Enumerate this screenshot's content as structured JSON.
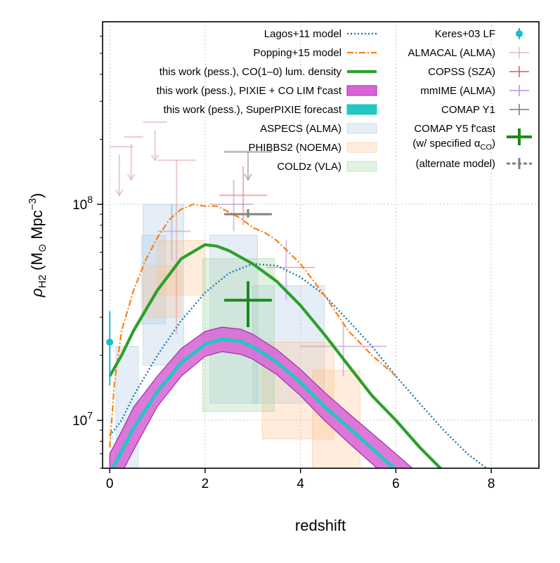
{
  "chart_data": {
    "type": "line",
    "xlabel": "redshift",
    "ylabel": "ρH2 (M⊙ Mpc⁻³)",
    "ylabel_parts": {
      "rho": "ρ",
      "sub": "H2",
      "mid": " (M",
      "sun": "⊙",
      "unit": " Mpc",
      "exp": "−3",
      "close": ")"
    },
    "xscale": "linear",
    "yscale": "log",
    "xlim": [
      -0.15,
      9.0
    ],
    "ylim": [
      6000000.0,
      700000000.0
    ],
    "x_ticks": [
      0,
      2,
      4,
      6,
      8
    ],
    "x_tick_labels": [
      "0",
      "2",
      "4",
      "6",
      "8"
    ],
    "y_major_ticks": [
      10000000.0,
      100000000.0
    ],
    "y_tick_labels": [
      {
        "base": "10",
        "exp": "7"
      },
      {
        "base": "10",
        "exp": "8"
      }
    ],
    "y_minor_ticks": [
      6000000.0,
      7000000.0,
      8000000.0,
      9000000.0,
      20000000.0,
      30000000.0,
      40000000.0,
      50000000.0,
      60000000.0,
      70000000.0,
      80000000.0,
      90000000.0,
      200000000.0,
      300000000.0,
      400000000.0,
      500000000.0,
      600000000.0
    ],
    "grid": true,
    "colors": {
      "lagos": "#1f77b4",
      "popping": "#ff7f0e",
      "this_work": "#2ca02c",
      "pixie_fill": "#d862d6",
      "pixie_edge": "#9b30a8",
      "superpixie": "#24c6c2",
      "aspecs": "#a8c8e0",
      "phibbs2": "#ffbf8a",
      "coldz": "#9fd39f",
      "keres": "#17becf",
      "almacal": "#d9a4a0",
      "copss": "#e06060",
      "mmime": "#b79bd6",
      "comap_y1": "#7f7f7f",
      "comap_y5": "#1a8a1a",
      "gray": "#808080"
    },
    "lines": [
      {
        "name": "Lagos+11 model",
        "style": "dotted",
        "points": [
          [
            0.0,
            8500000.0
          ],
          [
            0.25,
            10000000.0
          ],
          [
            0.5,
            13000000.0
          ],
          [
            1.0,
            20000000.0
          ],
          [
            1.5,
            29000000.0
          ],
          [
            2.0,
            39000000.0
          ],
          [
            2.5,
            48000000.0
          ],
          [
            3.0,
            53000000.0
          ],
          [
            3.5,
            52000000.0
          ],
          [
            4.0,
            46000000.0
          ],
          [
            4.5,
            38000000.0
          ],
          [
            5.0,
            29000000.0
          ],
          [
            5.5,
            22000000.0
          ],
          [
            6.0,
            16000000.0
          ],
          [
            6.5,
            12000000.0
          ],
          [
            7.0,
            9000000.0
          ],
          [
            7.5,
            7000000.0
          ],
          [
            7.9,
            6000000.0
          ]
        ]
      },
      {
        "name": "Popping+15 model",
        "style": "dashdot",
        "points": [
          [
            0.0,
            7500000.0
          ],
          [
            0.1,
            15000000.0
          ],
          [
            0.25,
            26000000.0
          ],
          [
            0.5,
            40000000.0
          ],
          [
            0.75,
            55000000.0
          ],
          [
            1.0,
            70000000.0
          ],
          [
            1.25,
            85000000.0
          ],
          [
            1.5,
            95000000.0
          ],
          [
            1.75,
            100000000.0
          ],
          [
            2.0,
            98000000.0
          ],
          [
            2.25,
            98000000.0
          ],
          [
            2.5,
            92000000.0
          ],
          [
            2.75,
            86000000.0
          ],
          [
            3.0,
            78000000.0
          ],
          [
            3.25,
            74000000.0
          ],
          [
            3.5,
            68000000.0
          ],
          [
            4.0,
            53000000.0
          ],
          [
            4.5,
            38000000.0
          ],
          [
            5.0,
            26000000.0
          ],
          [
            5.5,
            20000000.0
          ],
          [
            6.0,
            16000000.0
          ]
        ]
      },
      {
        "name": "this work (pess.), CO(1–0) lum. density",
        "style": "solid",
        "points": [
          [
            0.0,
            16000000.0
          ],
          [
            0.25,
            20000000.0
          ],
          [
            0.5,
            26000000.0
          ],
          [
            1.0,
            40000000.0
          ],
          [
            1.5,
            56000000.0
          ],
          [
            2.0,
            65000000.0
          ],
          [
            2.25,
            64000000.0
          ],
          [
            2.5,
            61000000.0
          ],
          [
            3.0,
            53000000.0
          ],
          [
            3.5,
            44000000.0
          ],
          [
            4.0,
            34000000.0
          ],
          [
            4.5,
            25000000.0
          ],
          [
            5.0,
            18000000.0
          ],
          [
            5.5,
            13000000.0
          ],
          [
            6.0,
            10000000.0
          ],
          [
            6.5,
            7500000.0
          ],
          [
            7.0,
            5800000.0
          ]
        ]
      }
    ],
    "bands": [
      {
        "name": "this work (pess.), PIXIE + CO LIM f'cast",
        "x": [
          0.0,
          0.25,
          0.5,
          1.0,
          1.5,
          2.0,
          2.35,
          2.75,
          3.0,
          3.5,
          4.0,
          4.5,
          5.0,
          5.5,
          6.0,
          6.5,
          7.0
        ],
        "lower": [
          4500000.0,
          5700000.0,
          7300000.0,
          11600000.0,
          16000000.0,
          19800000.0,
          20800000.0,
          20200000.0,
          19200000.0,
          16300000.0,
          13000000.0,
          10000000.0,
          7900000.0,
          6300000.0,
          5000000.0,
          4000000.0,
          3200000.0
        ],
        "upper": [
          7000000.0,
          8900000.0,
          11500000.0,
          16000000.0,
          21500000.0,
          25800000.0,
          27000000.0,
          26400000.0,
          25000000.0,
          21300000.0,
          17200000.0,
          13500000.0,
          10800000.0,
          8700000.0,
          7000000.0,
          5600000.0,
          4500000.0
        ],
        "center": [
          5600000.0,
          7200000.0,
          9200000.0,
          13600000.0,
          18500000.0,
          22500000.0,
          23800000.0,
          23200000.0,
          21900000.0,
          18600000.0,
          15000000.0,
          11600000.0,
          9300000.0,
          7400000.0,
          5900000.0,
          4700000.0,
          3800000.0
        ]
      }
    ],
    "boxes": [
      {
        "group": "ASPECS (ALMA)",
        "rects": [
          [
            0.13,
            0.6,
            2000000.0,
            22000000.0
          ],
          [
            0.67,
            1.17,
            28000000.0,
            72000000.0
          ],
          [
            0.7,
            1.55,
            18000000.0,
            100000000.0
          ],
          [
            2.1,
            3.1,
            12000000.0,
            72000000.0
          ],
          [
            3.0,
            4.5,
            12000000.0,
            42000000.0
          ]
        ]
      },
      {
        "group": "PHIBBS2 (NOEMA)",
        "rects": [
          [
            0.7,
            1.5,
            30000000.0,
            52000000.0
          ],
          [
            1.0,
            2.0,
            38000000.0,
            68000000.0
          ],
          [
            3.2,
            4.7,
            8200000.0,
            23000000.0
          ],
          [
            4.25,
            5.25,
            4500000.0,
            17000000.0
          ]
        ]
      },
      {
        "group": "COLDz (VLA)",
        "rects": [
          [
            1.95,
            3.45,
            11000000.0,
            56000000.0
          ]
        ]
      }
    ],
    "errorbars": [
      {
        "name": "Keres+03 LF",
        "x": 0.0,
        "y": 23000000.0,
        "ylo": 14500000.0,
        "yhi": 32000000.0
      },
      {
        "name": "ALMACAL (ALMA)",
        "segments": [
          [
            0.0,
            0.5,
            185000000.0,
            185000000.0
          ],
          [
            0.2,
            0.2,
            170000000.0,
            110000000.0
          ],
          [
            0.3,
            0.7,
            205000000.0,
            205000000.0
          ],
          [
            0.45,
            0.45,
            190000000.0,
            130000000.0
          ],
          [
            0.7,
            1.2,
            240000000.0,
            240000000.0
          ],
          [
            0.95,
            0.95,
            220000000.0,
            160000000.0
          ],
          [
            1.0,
            1.8,
            160000000.0,
            160000000.0
          ],
          [
            1.4,
            1.4,
            160000000.0,
            25000000.0
          ]
        ]
      },
      {
        "name": "COPSS (SZA)",
        "x": 2.8,
        "xlo": 2.3,
        "xhi": 3.3,
        "y": 110000000.0,
        "ylo": 80000000.0,
        "yhi": 150000000.0
      },
      {
        "name": "mmIME (ALMA)",
        "segments": [
          [
            1.0,
            1.7,
            75000000.0,
            75000000.0
          ],
          [
            1.3,
            1.3,
            100000000.0,
            55000000.0
          ],
          [
            2.1,
            3.0,
            100000000.0,
            100000000.0
          ],
          [
            2.6,
            2.6,
            130000000.0,
            75000000.0
          ],
          [
            3.3,
            4.3,
            51000000.0,
            51000000.0
          ],
          [
            3.7,
            3.7,
            68000000.0,
            36000000.0
          ],
          [
            4.0,
            5.8,
            22000000.0,
            22000000.0
          ],
          [
            4.9,
            4.9,
            28000000.0,
            16000000.0
          ]
        ]
      },
      {
        "name": "COMAP Y1",
        "x": 2.9,
        "xlo": 2.4,
        "xhi": 3.4,
        "y": 90000000.0,
        "yhi": 95000000.0,
        "arrow": [
          2.4,
          3.4,
          175000000.0,
          175000000.0,
          2.9,
          2.9,
          175000000.0,
          130000000.0
        ]
      },
      {
        "name": "COMAP Y5 f'cast",
        "x": 2.9,
        "xlo": 2.4,
        "xhi": 3.4,
        "y": 36000000.0,
        "ylo": 27000000.0,
        "yhi": 44000000.0
      }
    ],
    "legend": {
      "placement": "top",
      "left": [
        {
          "label": "Lagos+11 model",
          "kind": "line-dotted",
          "color": "#1f77b4"
        },
        {
          "label": "Popping+15 model",
          "kind": "line-dashdot",
          "color": "#ff7f0e"
        },
        {
          "label": "this work (pess.), CO(1–0) lum. density",
          "kind": "line-thick",
          "color": "#2ca02c"
        },
        {
          "label": "this work (pess.), PIXIE + CO LIM f'cast",
          "kind": "patch",
          "color": "#d862d6",
          "edge": "#9b30a8"
        },
        {
          "label": "this work (pess.), SuperPIXIE forecast",
          "kind": "patch",
          "color": "#24c6c2",
          "edge": "#24c6c2"
        },
        {
          "label": "ASPECS (ALMA)",
          "kind": "patch-light",
          "color": "#a8c8e0"
        },
        {
          "label": "PHIBBS2 (NOEMA)",
          "kind": "patch-light",
          "color": "#ffbf8a"
        },
        {
          "label": "COLDz (VLA)",
          "kind": "patch-light",
          "color": "#9fd39f"
        }
      ],
      "right": [
        {
          "label": "Keres+03 LF",
          "kind": "dot",
          "color": "#17becf"
        },
        {
          "label": "ALMACAL (ALMA)",
          "kind": "cross-light",
          "color": "#d9a4a0"
        },
        {
          "label": "COPSS (SZA)",
          "kind": "cross",
          "color": "#e06060"
        },
        {
          "label": "mmIME (ALMA)",
          "kind": "cross",
          "color": "#b79bd6"
        },
        {
          "label": "COMAP Y1",
          "kind": "cross",
          "color": "#808080"
        },
        {
          "label": "COMAP Y5 f'cast",
          "label2_prefix": "(w/ specified α",
          "label2_sub": "CO",
          "label2_suffix": ")",
          "kind": "cross-big",
          "color": "#1a8a1a"
        },
        {
          "label": "(alternate model)",
          "kind": "cross-dashed",
          "color": "#808080"
        }
      ]
    }
  }
}
